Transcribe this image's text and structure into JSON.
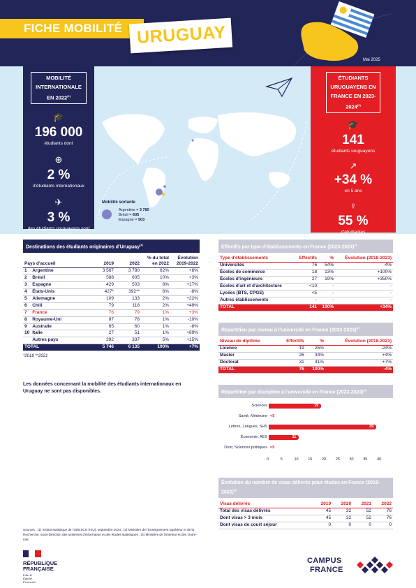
{
  "header": {
    "title": "FICHE MOBILITÉ",
    "country": "URUGUAY",
    "date": "Mai 2025"
  },
  "left": {
    "label": "MOBILITÉ INTERNATIONALE EN 2022",
    "label_note": "(1)",
    "s1_value": "196 000",
    "s1_text": "étudiants dont",
    "s2_value": "2 %",
    "s2_text": "d'étudiants internationaux",
    "s3_value": "3 %",
    "s3_text": "des étudiants uruguayens sont mobiles"
  },
  "right": {
    "label": "ÉTUDIANTS URUGUAYENS EN FRANCE EN 2023-2024",
    "label_note": "(2)",
    "s1_value": "141",
    "s1_text": "étudiants uruguayens",
    "s2_value": "+34 %",
    "s2_text": "en 5 ans",
    "s3_value": "55 %",
    "s3_text": "d'étudiantes"
  },
  "map": {
    "legend_title": "Mobilité sortante",
    "legend": [
      {
        "name": "Argentine",
        "value": "3 780"
      },
      {
        "name": "Brésil",
        "value": "605"
      },
      {
        "name": "Espagne",
        "value": "503"
      }
    ]
  },
  "destinations": {
    "title": "Destinations des étudiants originaires d'Uruguay",
    "note": "(1)",
    "headers": [
      "Pays d'accueil",
      "2019",
      "2022",
      "% du total en 2022",
      "Évolution 2019-2022"
    ],
    "rows": [
      [
        "1",
        "Argentine",
        "3 567",
        "3 780",
        "62%",
        "+6%"
      ],
      [
        "2",
        "Brésil",
        "588",
        "605",
        "10%",
        "+3%"
      ],
      [
        "3",
        "Espagne",
        "429",
        "503",
        "8%",
        "+17%"
      ],
      [
        "4",
        "États-Unis",
        "427*",
        "392**",
        "6%",
        "-8%"
      ],
      [
        "5",
        "Allemagne",
        "109",
        "133",
        "2%",
        "+22%"
      ],
      [
        "6",
        "Chili",
        "79",
        "118",
        "2%",
        "+49%"
      ],
      [
        "7",
        "France",
        "76",
        "79",
        "1%",
        "+3%"
      ],
      [
        "8",
        "Royaume-Uni",
        "87",
        "78",
        "1%",
        "-10%"
      ],
      [
        "9",
        "Australie",
        "65",
        "60",
        "1%",
        "-8%"
      ],
      [
        "10",
        "Italie",
        "27",
        "51",
        "1%",
        "+89%"
      ],
      [
        "",
        "Autres pays",
        "292",
        "337",
        "5%",
        "+15%"
      ]
    ],
    "total": [
      "TOTAL",
      "5 746",
      "6 135",
      "100%",
      "+7%"
    ],
    "footnote": "*2018 **2021"
  },
  "notice": "Les données concernant la mobilité des étudiants internationaux en Uruguay ne sont pas disponibles.",
  "etab": {
    "title": "Effectifs par type d'établissements en France (2023-2024)",
    "note": "(2)",
    "headers": [
      "Type d'établissements",
      "Effectifs",
      "%",
      "Évolution (2018-2023)"
    ],
    "rows": [
      [
        "Universités",
        "76",
        "54%",
        "-4%"
      ],
      [
        "Écoles de commerce",
        "18",
        "13%",
        "+100%"
      ],
      [
        "Écoles d'ingénieurs",
        "27",
        "19%",
        "+350%"
      ],
      [
        "Écoles d'art et d'architecture",
        "<10",
        "-",
        "-"
      ],
      [
        "Lycées (BTS, CPGE)",
        "<5",
        "-",
        "-"
      ],
      [
        "Autres établissements",
        "-",
        "-",
        "-"
      ]
    ],
    "total": [
      "TOTAL",
      "141",
      "100%",
      "+34%"
    ]
  },
  "niveau": {
    "title": "Répartition par niveau à l'université en France (2023-2024)",
    "note": "(2)",
    "headers": [
      "Niveau de diplôme",
      "Effectifs",
      "%",
      "Évolution (2018-2023)"
    ],
    "rows": [
      [
        "Licence",
        "19",
        "25%",
        "-24%"
      ],
      [
        "Master",
        "26",
        "34%",
        "+4%"
      ],
      [
        "Doctorat",
        "31",
        "41%",
        "+7%"
      ]
    ],
    "total": [
      "TOTAL",
      "76",
      "100%",
      "-4%"
    ]
  },
  "discipline_title": "Répartition par discipline à l'université en France (2023-2024)",
  "discipline_note": "(2)",
  "chart_data": {
    "type": "bar",
    "orientation": "horizontal",
    "title": "Répartition par discipline à l'université en France (2023-2024)",
    "categories": [
      "Sciences",
      "Santé, Médecine",
      "Lettres, Langues, SHS",
      "Économie, AES",
      "Droit, Sciences politiques"
    ],
    "values": [
      19,
      0,
      39,
      11,
      0
    ],
    "labels": [
      "19",
      "<5",
      "39",
      "11",
      "<5"
    ],
    "xticks": [
      0,
      5,
      10,
      15,
      20,
      25,
      30,
      35,
      40
    ],
    "xlim": [
      0,
      40
    ]
  },
  "visas": {
    "title": "Évolution du nombre de visas délivrés pour études en France (2019-2022)",
    "note": "(3)",
    "headers": [
      "Visas délivrés",
      "2019",
      "2020",
      "2021",
      "2022"
    ],
    "rows": [
      [
        "Total des visas délivrés",
        "45",
        "32",
        "52",
        "76"
      ],
      [
        "Dont visas > 3 mois",
        "45",
        "32",
        "52",
        "76"
      ],
      [
        "Dont visas de court séjour",
        "0",
        "0",
        "0",
        "0"
      ]
    ]
  },
  "sources": "Sources : (1) Institut statistique de l'UNESCO (ISU), septembre 2024 ; (2) Ministère de l'Enseignement supérieur et de la Recherche, Sous-Direction des systèmes d'information et des études statistiques ; (3) Ministère de l'Intérieur et des Outre-mer.",
  "footer": {
    "rf1": "RÉPUBLIQUE",
    "rf2": "FRANÇAISE",
    "rf_motto1": "Liberté",
    "rf_motto2": "Égalité",
    "rf_motto3": "Fraternité",
    "cf1": "CAMPUS",
    "cf2": "FRANCE"
  },
  "colors": {
    "navy": "#222557",
    "red": "#e31e25",
    "yellow": "#f7c51c",
    "light_blue": "#d4eaf7"
  }
}
